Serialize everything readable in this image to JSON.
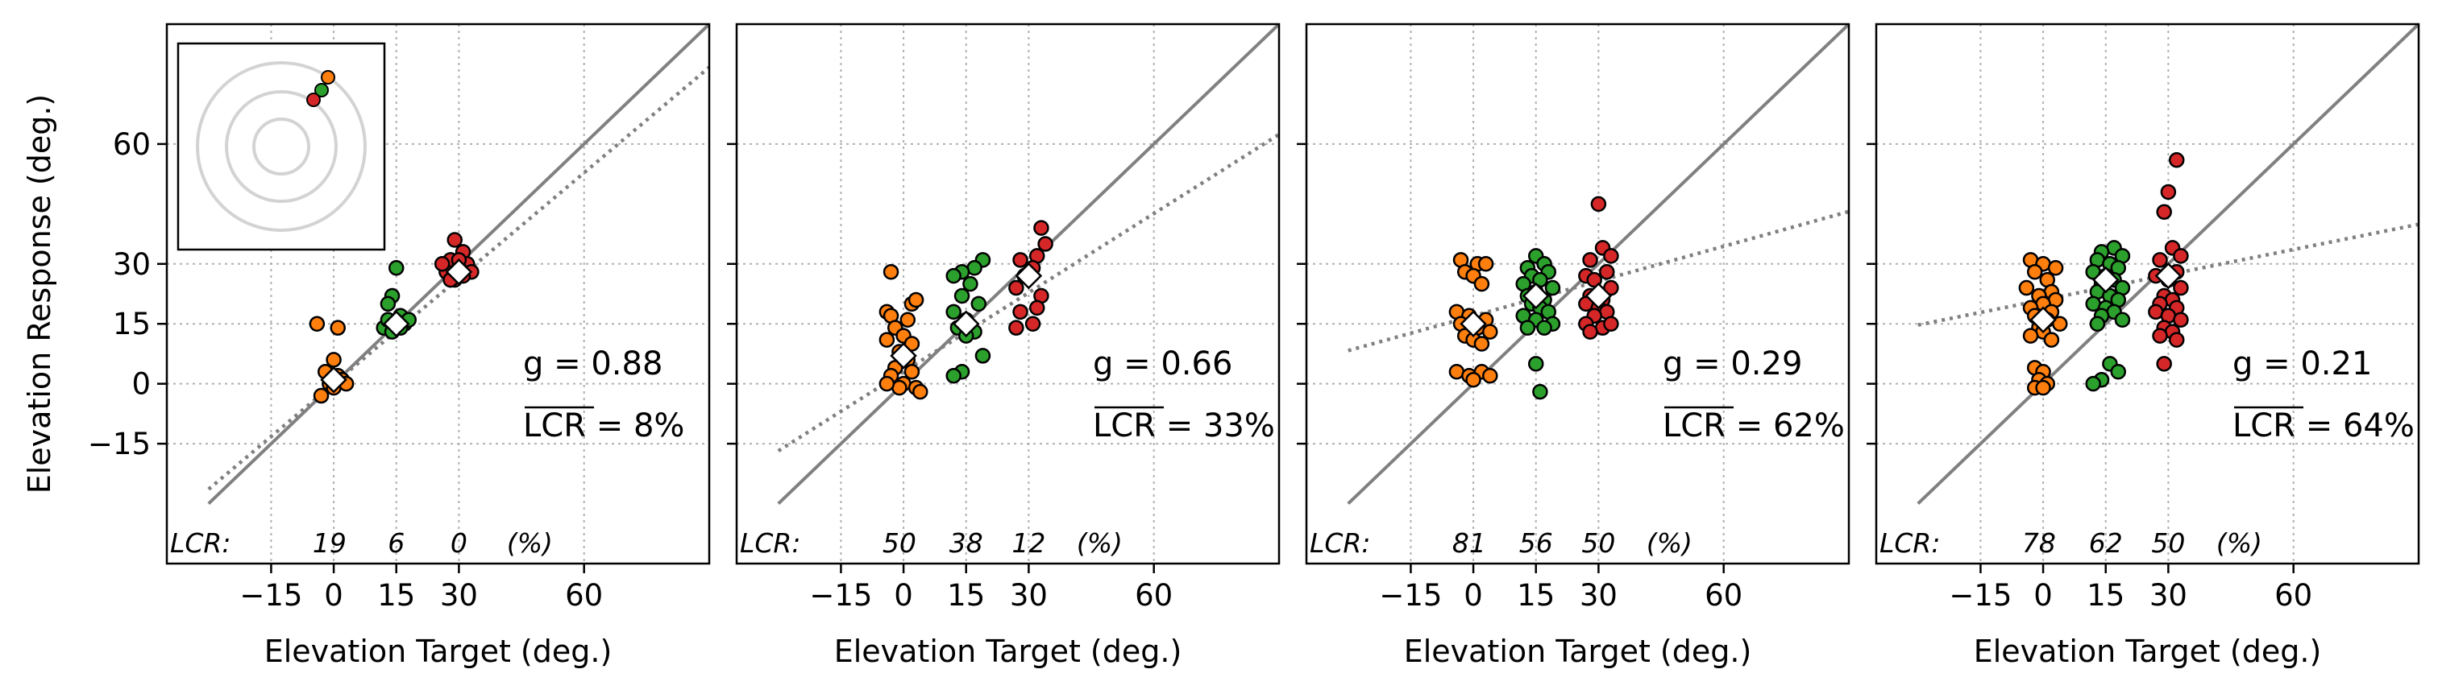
{
  "chart_data": [
    {
      "type": "scatter",
      "xlabel": "Elevation Target (deg.)",
      "ylabel": "Elevation Response (deg.)",
      "xlim": [
        -40,
        90
      ],
      "ylim": [
        -45,
        90
      ],
      "xticks": [
        -15,
        0,
        15,
        30,
        60
      ],
      "yticks": [
        -15,
        0,
        15,
        30,
        60
      ],
      "grid": true,
      "has_inset": true,
      "g_label": "g = 0.88",
      "lcr_mean_label": "LCR = 8%",
      "lcr_prefix": "LCR:",
      "lcr_values": [
        "19",
        "6",
        "0"
      ],
      "lcr_unit": "(%)",
      "gain": 0.88,
      "fit_intercept": 0,
      "means": [
        [
          0,
          1
        ],
        [
          15,
          15
        ],
        [
          30,
          28
        ]
      ],
      "series": [
        {
          "target": 0,
          "color": "#ff7f0e",
          "points": [
            [
              -4,
              15
            ],
            [
              1,
              14
            ],
            [
              0,
              6
            ],
            [
              -2,
              3
            ],
            [
              1,
              2
            ],
            [
              -1,
              0
            ],
            [
              2,
              1
            ],
            [
              -3,
              -3
            ],
            [
              0,
              -1
            ],
            [
              3,
              0
            ]
          ]
        },
        {
          "target": 15,
          "color": "#2ca02c",
          "points": [
            [
              15,
              29
            ],
            [
              14,
              22
            ],
            [
              13,
              20
            ],
            [
              16,
              17
            ],
            [
              12,
              14
            ],
            [
              17,
              15
            ],
            [
              14,
              13
            ],
            [
              18,
              16
            ],
            [
              16,
              14
            ],
            [
              13,
              16
            ]
          ]
        },
        {
          "target": 30,
          "color": "#d62728",
          "points": [
            [
              29,
              36
            ],
            [
              31,
              33
            ],
            [
              28,
              31
            ],
            [
              32,
              30
            ],
            [
              27,
              28
            ],
            [
              30,
              29
            ],
            [
              33,
              28
            ],
            [
              26,
              30
            ],
            [
              29,
              26
            ],
            [
              31,
              27
            ],
            [
              28,
              26
            ],
            [
              30,
              31
            ]
          ]
        }
      ]
    },
    {
      "type": "scatter",
      "xlabel": "Elevation Target (deg.)",
      "ylabel": "",
      "xlim": [
        -40,
        90
      ],
      "ylim": [
        -45,
        90
      ],
      "xticks": [
        -15,
        0,
        15,
        30,
        60
      ],
      "yticks": [
        -15,
        0,
        15,
        30,
        60
      ],
      "grid": true,
      "has_inset": false,
      "g_label": "g = 0.66",
      "lcr_mean_label": "LCR = 33%",
      "lcr_prefix": "LCR:",
      "lcr_values": [
        "50",
        "38",
        "12"
      ],
      "lcr_unit": "(%)",
      "gain": 0.66,
      "fit_intercept": 3,
      "means": [
        [
          0,
          7
        ],
        [
          15,
          15
        ],
        [
          30,
          27
        ]
      ],
      "series": [
        {
          "target": 0,
          "color": "#ff7f0e",
          "points": [
            [
              -3,
              28
            ],
            [
              2,
              20
            ],
            [
              3,
              21
            ],
            [
              -4,
              18
            ],
            [
              -3,
              17
            ],
            [
              1,
              16
            ],
            [
              -2,
              14
            ],
            [
              0,
              12
            ],
            [
              -4,
              11
            ],
            [
              2,
              10
            ],
            [
              -1,
              8
            ],
            [
              1,
              6
            ],
            [
              -2,
              4
            ],
            [
              2,
              3
            ],
            [
              -3,
              2
            ],
            [
              0,
              0
            ],
            [
              3,
              -1
            ],
            [
              -1,
              -1
            ],
            [
              -4,
              0
            ],
            [
              4,
              -2
            ]
          ]
        },
        {
          "target": 15,
          "color": "#2ca02c",
          "points": [
            [
              19,
              31
            ],
            [
              17,
              29
            ],
            [
              14,
              28
            ],
            [
              12,
              27
            ],
            [
              16,
              25
            ],
            [
              14,
              22
            ],
            [
              18,
              20
            ],
            [
              12,
              18
            ],
            [
              15,
              16
            ],
            [
              13,
              14
            ],
            [
              17,
              13
            ],
            [
              15,
              12
            ],
            [
              19,
              7
            ],
            [
              14,
              3
            ],
            [
              12,
              2
            ]
          ]
        },
        {
          "target": 30,
          "color": "#d62728",
          "points": [
            [
              33,
              39
            ],
            [
              34,
              35
            ],
            [
              32,
              32
            ],
            [
              28,
              31
            ],
            [
              31,
              29
            ],
            [
              29,
              27
            ],
            [
              27,
              24
            ],
            [
              33,
              22
            ],
            [
              32,
              19
            ],
            [
              28,
              18
            ],
            [
              31,
              15
            ],
            [
              27,
              14
            ]
          ]
        }
      ]
    },
    {
      "type": "scatter",
      "xlabel": "Elevation Target (deg.)",
      "ylabel": "",
      "xlim": [
        -40,
        90
      ],
      "ylim": [
        -45,
        90
      ],
      "xticks": [
        -15,
        0,
        15,
        30,
        60
      ],
      "yticks": [
        -15,
        0,
        15,
        30,
        60
      ],
      "grid": true,
      "has_inset": false,
      "g_label": "g = 0.29",
      "lcr_mean_label": "LCR = 62%",
      "lcr_prefix": "LCR:",
      "lcr_values": [
        "81",
        "56",
        "50"
      ],
      "lcr_unit": "(%)",
      "gain": 0.29,
      "fit_intercept": 17,
      "means": [
        [
          0,
          15
        ],
        [
          15,
          22
        ],
        [
          30,
          22
        ]
      ],
      "series": [
        {
          "target": 0,
          "color": "#ff7f0e",
          "points": [
            [
              -3,
              31
            ],
            [
              1,
              30
            ],
            [
              3,
              30
            ],
            [
              -2,
              28
            ],
            [
              0,
              27
            ],
            [
              2,
              25
            ],
            [
              -4,
              18
            ],
            [
              -1,
              17
            ],
            [
              3,
              16
            ],
            [
              -3,
              15
            ],
            [
              1,
              14
            ],
            [
              4,
              13
            ],
            [
              -2,
              12
            ],
            [
              0,
              11
            ],
            [
              2,
              10
            ],
            [
              -4,
              3
            ],
            [
              -1,
              2
            ],
            [
              2,
              3
            ],
            [
              4,
              2
            ],
            [
              0,
              1
            ]
          ]
        },
        {
          "target": 15,
          "color": "#2ca02c",
          "points": [
            [
              15,
              32
            ],
            [
              17,
              30
            ],
            [
              13,
              29
            ],
            [
              18,
              28
            ],
            [
              14,
              27
            ],
            [
              16,
              26
            ],
            [
              12,
              25
            ],
            [
              19,
              24
            ],
            [
              15,
              23
            ],
            [
              13,
              22
            ],
            [
              17,
              21
            ],
            [
              14,
              20
            ],
            [
              16,
              19
            ],
            [
              18,
              18
            ],
            [
              12,
              17
            ],
            [
              15,
              16
            ],
            [
              19,
              15
            ],
            [
              13,
              14
            ],
            [
              17,
              14
            ],
            [
              15,
              5
            ],
            [
              16,
              -2
            ]
          ]
        },
        {
          "target": 30,
          "color": "#d62728",
          "points": [
            [
              30,
              45
            ],
            [
              31,
              34
            ],
            [
              33,
              32
            ],
            [
              28,
              31
            ],
            [
              32,
              28
            ],
            [
              27,
              27
            ],
            [
              29,
              26
            ],
            [
              33,
              24
            ],
            [
              28,
              22
            ],
            [
              31,
              21
            ],
            [
              27,
              20
            ],
            [
              30,
              19
            ],
            [
              32,
              18
            ],
            [
              29,
              17
            ],
            [
              27,
              15
            ],
            [
              31,
              14
            ],
            [
              28,
              13
            ],
            [
              33,
              15
            ]
          ]
        }
      ]
    },
    {
      "type": "scatter",
      "xlabel": "Elevation Target (deg.)",
      "ylabel": "",
      "xlim": [
        -40,
        90
      ],
      "ylim": [
        -45,
        90
      ],
      "xticks": [
        -15,
        0,
        15,
        30,
        60
      ],
      "yticks": [
        -15,
        0,
        15,
        30,
        60
      ],
      "grid": true,
      "has_inset": false,
      "g_label": "g = 0.21",
      "lcr_mean_label": "LCR = 64%",
      "lcr_prefix": "LCR:",
      "lcr_values": [
        "78",
        "62",
        "50"
      ],
      "lcr_unit": "(%)",
      "gain": 0.21,
      "fit_intercept": 21,
      "means": [
        [
          0,
          16
        ],
        [
          15,
          26
        ],
        [
          30,
          27
        ]
      ],
      "series": [
        {
          "target": 0,
          "color": "#ff7f0e",
          "points": [
            [
              -3,
              31
            ],
            [
              0,
              30
            ],
            [
              3,
              29
            ],
            [
              -2,
              28
            ],
            [
              1,
              26
            ],
            [
              -4,
              24
            ],
            [
              2,
              23
            ],
            [
              -1,
              22
            ],
            [
              3,
              21
            ],
            [
              0,
              20
            ],
            [
              -3,
              19
            ],
            [
              2,
              18
            ],
            [
              -2,
              17
            ],
            [
              1,
              16
            ],
            [
              4,
              15
            ],
            [
              -1,
              14
            ],
            [
              0,
              13
            ],
            [
              -3,
              12
            ],
            [
              2,
              11
            ],
            [
              -2,
              4
            ],
            [
              0,
              3
            ],
            [
              -1,
              1
            ],
            [
              1,
              0
            ],
            [
              -2,
              -1
            ],
            [
              0,
              -1
            ]
          ]
        },
        {
          "target": 15,
          "color": "#2ca02c",
          "points": [
            [
              17,
              34
            ],
            [
              14,
              33
            ],
            [
              19,
              32
            ],
            [
              13,
              31
            ],
            [
              16,
              30
            ],
            [
              18,
              29
            ],
            [
              12,
              28
            ],
            [
              15,
              27
            ],
            [
              17,
              26
            ],
            [
              14,
              25
            ],
            [
              19,
              24
            ],
            [
              13,
              23
            ],
            [
              16,
              22
            ],
            [
              18,
              21
            ],
            [
              12,
              20
            ],
            [
              15,
              19
            ],
            [
              17,
              18
            ],
            [
              14,
              17
            ],
            [
              19,
              16
            ],
            [
              13,
              15
            ],
            [
              16,
              5
            ],
            [
              18,
              3
            ],
            [
              14,
              1
            ],
            [
              12,
              0
            ]
          ]
        },
        {
          "target": 30,
          "color": "#d62728",
          "points": [
            [
              32,
              56
            ],
            [
              30,
              48
            ],
            [
              29,
              43
            ],
            [
              31,
              34
            ],
            [
              33,
              32
            ],
            [
              28,
              31
            ],
            [
              32,
              28
            ],
            [
              27,
              27
            ],
            [
              30,
              26
            ],
            [
              33,
              24
            ],
            [
              29,
              22
            ],
            [
              31,
              21
            ],
            [
              28,
              20
            ],
            [
              32,
              19
            ],
            [
              27,
              18
            ],
            [
              30,
              17
            ],
            [
              33,
              16
            ],
            [
              29,
              14
            ],
            [
              31,
              13
            ],
            [
              28,
              12
            ],
            [
              32,
              11
            ],
            [
              29,
              5
            ]
          ]
        }
      ]
    }
  ]
}
